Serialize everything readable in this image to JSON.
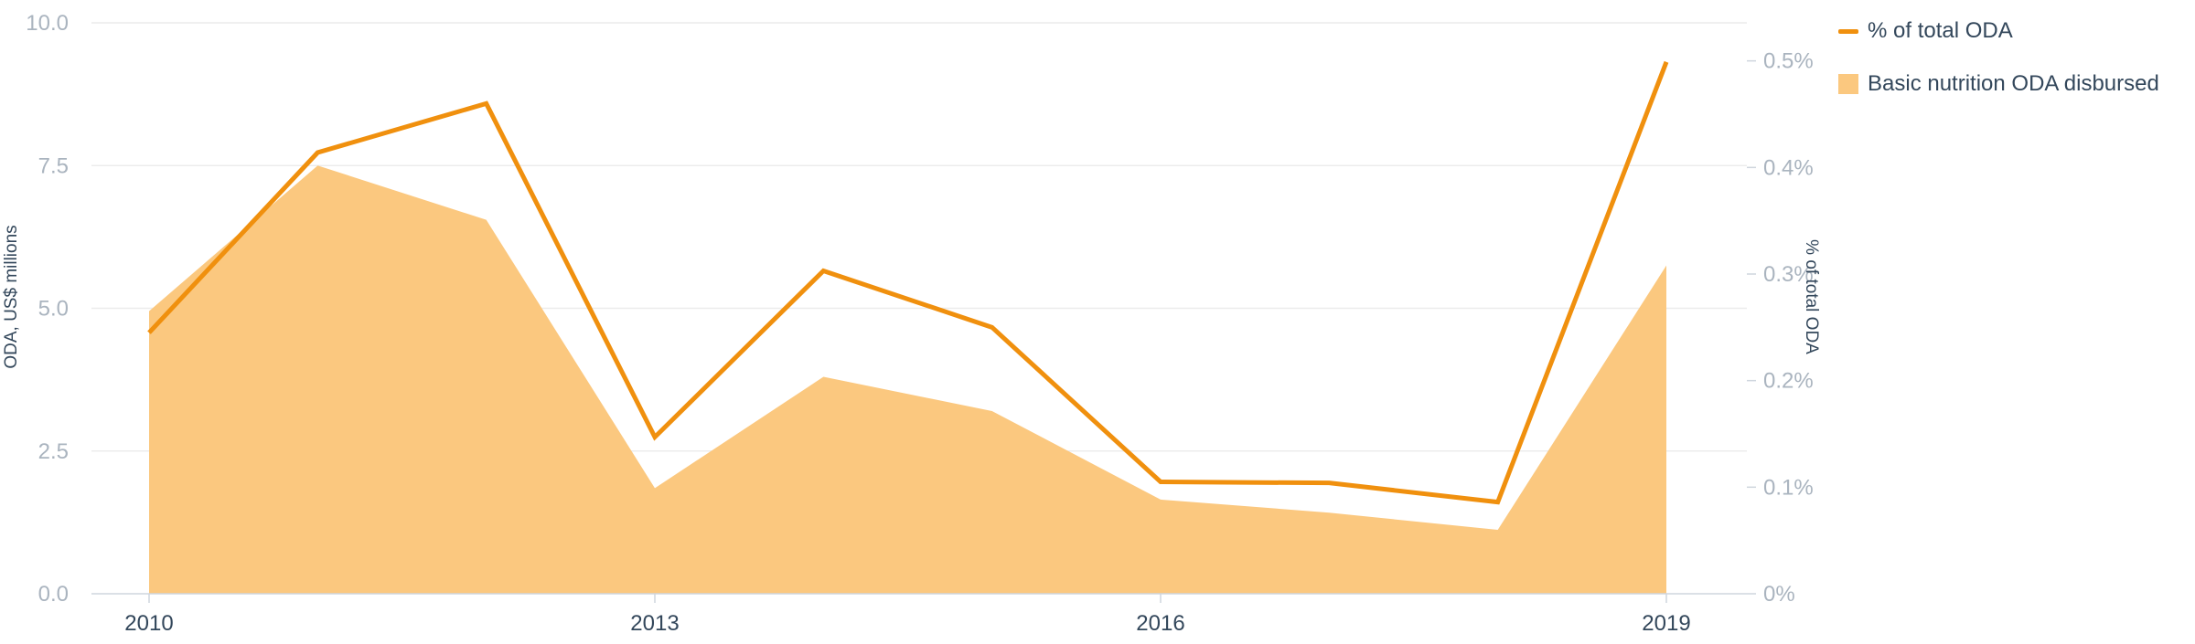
{
  "chart_data": {
    "type": "area",
    "years": [
      "2010",
      "2011",
      "2012",
      "2013",
      "2014",
      "2015",
      "2016",
      "2017",
      "2018",
      "2019"
    ],
    "x_tick_labels": [
      "2010",
      "2013",
      "2016",
      "2019"
    ],
    "left_axis": {
      "title": "ODA, US$ millions",
      "range": [
        0,
        10
      ],
      "tick_labels": [
        "0.0",
        "2.5",
        "5.0",
        "7.5",
        "10.0"
      ]
    },
    "right_axis": {
      "title": "% of total ODA",
      "range": [
        0,
        0.5357
      ],
      "tick_labels": [
        "0%",
        "0.1%",
        "0.2%",
        "0.3%",
        "0.4%",
        "0.5%"
      ]
    },
    "series": [
      {
        "name": "Basic nutrition ODA disbursed",
        "type": "area",
        "axis": "left",
        "color": "#fbc87f",
        "values": [
          4.95,
          7.5,
          6.55,
          1.85,
          3.8,
          3.2,
          1.65,
          1.42,
          1.12,
          5.75
        ]
      },
      {
        "name": "% of total ODA",
        "type": "line",
        "axis": "right",
        "color": "#f0900e",
        "values": [
          0.245,
          0.414,
          0.46,
          0.147,
          0.303,
          0.25,
          0.105,
          0.104,
          0.086,
          0.499
        ]
      }
    ],
    "grid": true,
    "legend_position": "top-right"
  }
}
